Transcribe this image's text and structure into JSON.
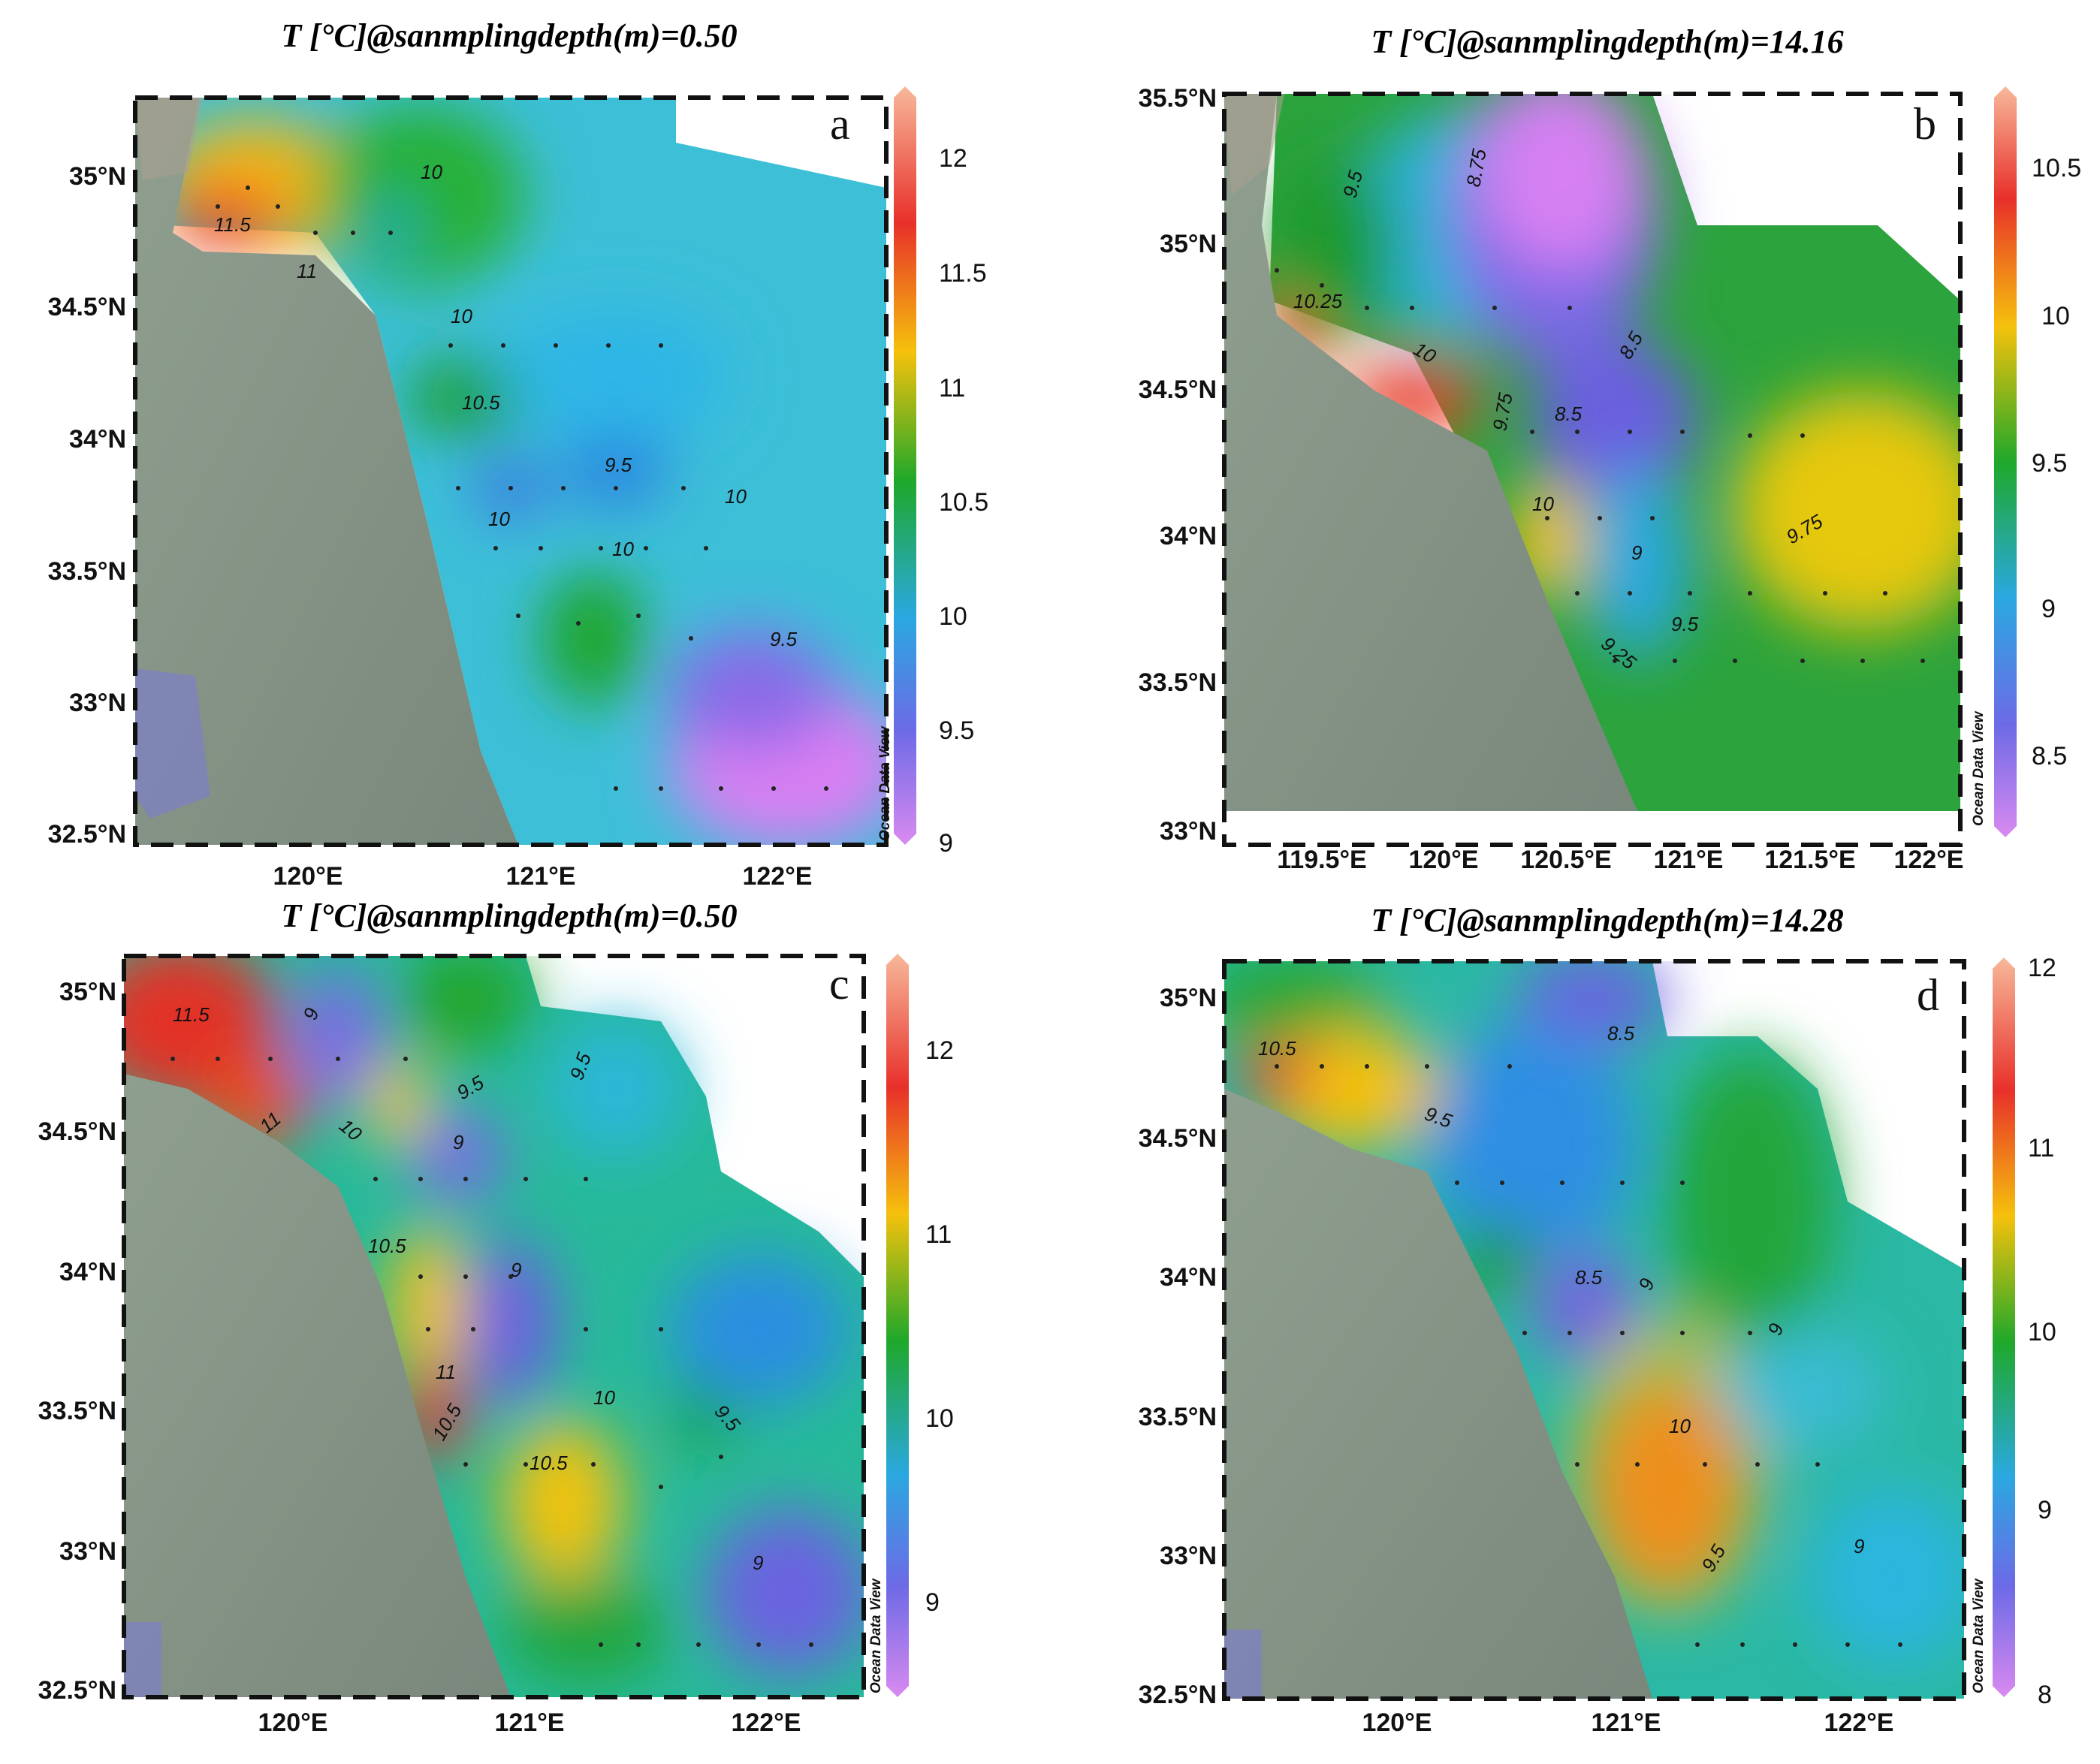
{
  "colors": {
    "land": "#7f8c80",
    "land_light": "#9aa89a",
    "frame": "#111111"
  },
  "panels": [
    {
      "id": "a",
      "title": "T [°C]@sanmplingdepth(m)=0.50",
      "letter": "a",
      "lat_labels": [
        "35°N",
        "34.5°N",
        "34°N",
        "33.5°N",
        "33°N",
        "32.5°N"
      ],
      "lon_labels": [
        "120°E",
        "121°E",
        "122°E"
      ],
      "colorbar_ticks": [
        "12",
        "11.5",
        "11",
        "10.5",
        "10",
        "9.5",
        "9"
      ],
      "contour_labels": [
        "10",
        "11.5",
        "11",
        "10",
        "10.5",
        "9.5",
        "10",
        "10",
        "10",
        "9.5"
      ],
      "watermark": "Ocean Data View"
    },
    {
      "id": "b",
      "title": "T [°C]@sanmplingdepth(m)=14.16",
      "letter": "b",
      "lat_labels": [
        "35.5°N",
        "35°N",
        "34.5°N",
        "34°N",
        "33.5°N",
        "33°N"
      ],
      "lon_labels": [
        "119.5°E",
        "120°E",
        "120.5°E",
        "121°E",
        "121.5°E",
        "122°E"
      ],
      "colorbar_ticks": [
        "10.5",
        "10",
        "9.5",
        "9",
        "8.5"
      ],
      "contour_labels": [
        "9.5",
        "8.75",
        "10.25",
        "10",
        "9.75",
        "8.5",
        "8.5",
        "10",
        "9",
        "9.25",
        "9.5",
        "9.75"
      ],
      "watermark": "Ocean Data View"
    },
    {
      "id": "c",
      "title": "T [°C]@sanmplingdepth(m)=0.50",
      "letter": "c",
      "lat_labels": [
        "35°N",
        "34.5°N",
        "34°N",
        "33.5°N",
        "33°N",
        "32.5°N"
      ],
      "lon_labels": [
        "120°E",
        "121°E",
        "122°E"
      ],
      "colorbar_ticks": [
        "12",
        "11",
        "10",
        "9"
      ],
      "contour_labels": [
        "11.5",
        "9",
        "11",
        "10",
        "9.5",
        "9.5",
        "9",
        "10.5",
        "9",
        "11",
        "10.5",
        "10",
        "10.5",
        "9.5",
        "9"
      ],
      "watermark": "Ocean Data View"
    },
    {
      "id": "d",
      "title": "T [°C]@sanmplingdepth(m)=14.28",
      "letter": "d",
      "lat_labels": [
        "35°N",
        "34.5°N",
        "34°N",
        "33.5°N",
        "33°N",
        "32.5°N"
      ],
      "lon_labels": [
        "120°E",
        "121°E",
        "122°E"
      ],
      "colorbar_ticks": [
        "12",
        "11",
        "10",
        "9",
        "8"
      ],
      "contour_labels": [
        "10.5",
        "8.5",
        "9.5",
        "8.5",
        "9",
        "9",
        "10",
        "9.5",
        "9"
      ],
      "watermark": "Ocean Data View"
    }
  ]
}
